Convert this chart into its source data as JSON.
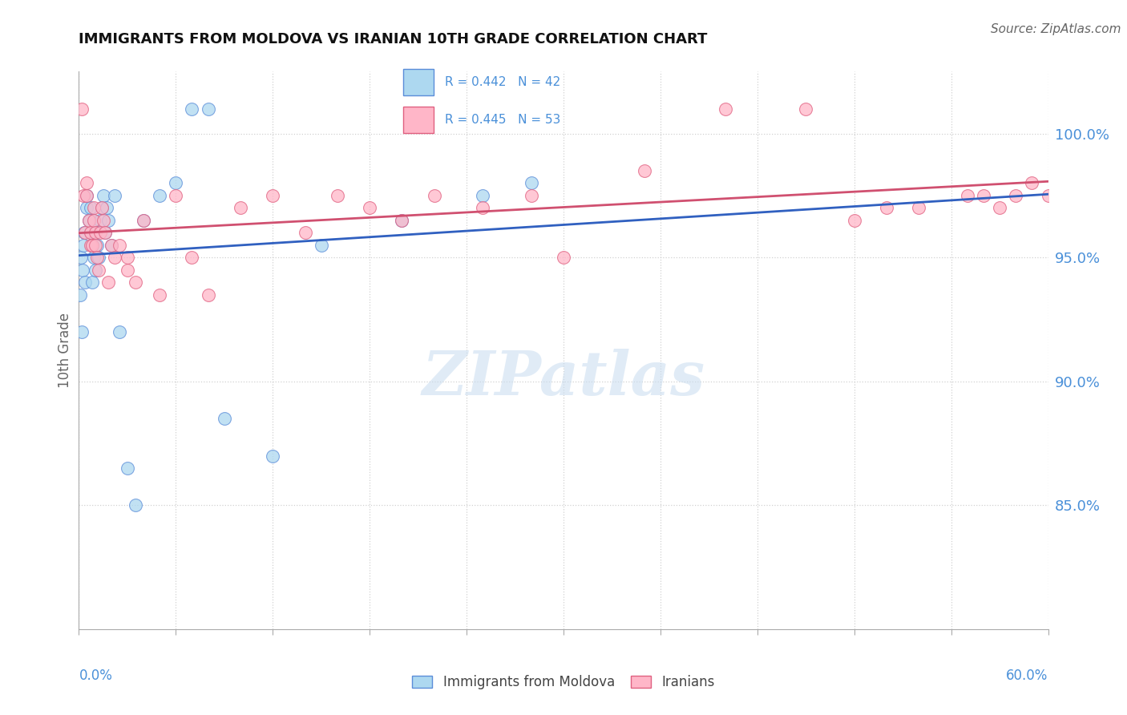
{
  "title": "IMMIGRANTS FROM MOLDOVA VS IRANIAN 10TH GRADE CORRELATION CHART",
  "source": "Source: ZipAtlas.com",
  "ylabel": "10th Grade",
  "xlim": [
    0.0,
    60.0
  ],
  "ylim": [
    80.0,
    102.5
  ],
  "yticks": [
    85.0,
    90.0,
    95.0,
    100.0
  ],
  "ytick_labels": [
    "85.0%",
    "90.0%",
    "95.0%",
    "100.0%"
  ],
  "xtick_positions": [
    0.0,
    6.0,
    12.0,
    18.0,
    24.0,
    30.0,
    36.0,
    42.0,
    48.0,
    54.0,
    60.0
  ],
  "blue_R": 0.442,
  "blue_N": 42,
  "pink_R": 0.445,
  "pink_N": 53,
  "blue_scatter_color": "#ADD8F0",
  "blue_scatter_edge": "#5B8DD9",
  "pink_scatter_color": "#FFB6C8",
  "pink_scatter_edge": "#E06080",
  "blue_line_color": "#3060C0",
  "pink_line_color": "#D05070",
  "legend_label_blue": "Immigrants from Moldova",
  "legend_label_pink": "Iranians",
  "blue_x": [
    0.1,
    0.15,
    0.2,
    0.25,
    0.3,
    0.35,
    0.4,
    0.5,
    0.5,
    0.6,
    0.7,
    0.7,
    0.8,
    0.8,
    0.9,
    0.9,
    1.0,
    1.0,
    1.1,
    1.2,
    1.3,
    1.4,
    1.5,
    1.6,
    1.7,
    1.8,
    2.0,
    2.2,
    2.5,
    3.0,
    3.5,
    4.0,
    5.0,
    6.0,
    7.0,
    8.0,
    9.0,
    12.0,
    15.0,
    20.0,
    25.0,
    28.0
  ],
  "blue_y": [
    93.5,
    95.0,
    92.0,
    94.5,
    95.5,
    96.0,
    94.0,
    97.0,
    97.5,
    96.5,
    96.0,
    97.0,
    95.5,
    94.0,
    96.5,
    95.0,
    94.5,
    96.0,
    95.5,
    95.0,
    96.5,
    97.0,
    97.5,
    96.0,
    97.0,
    96.5,
    95.5,
    97.5,
    92.0,
    86.5,
    85.0,
    96.5,
    97.5,
    98.0,
    101.0,
    101.0,
    88.5,
    87.0,
    95.5,
    96.5,
    97.5,
    98.0
  ],
  "pink_x": [
    0.2,
    0.3,
    0.4,
    0.5,
    0.5,
    0.6,
    0.7,
    0.7,
    0.8,
    0.9,
    0.9,
    1.0,
    1.0,
    1.1,
    1.2,
    1.3,
    1.4,
    1.5,
    1.6,
    1.8,
    2.0,
    2.2,
    2.5,
    3.0,
    3.0,
    3.5,
    4.0,
    5.0,
    6.0,
    7.0,
    8.0,
    10.0,
    12.0,
    14.0,
    16.0,
    18.0,
    20.0,
    22.0,
    25.0,
    28.0,
    30.0,
    35.0,
    40.0,
    45.0,
    48.0,
    50.0,
    52.0,
    55.0,
    56.0,
    57.0,
    58.0,
    59.0,
    60.0
  ],
  "pink_y": [
    101.0,
    97.5,
    96.0,
    97.5,
    98.0,
    96.5,
    95.5,
    96.0,
    95.5,
    97.0,
    96.5,
    95.5,
    96.0,
    95.0,
    94.5,
    96.0,
    97.0,
    96.5,
    96.0,
    94.0,
    95.5,
    95.0,
    95.5,
    95.0,
    94.5,
    94.0,
    96.5,
    93.5,
    97.5,
    95.0,
    93.5,
    97.0,
    97.5,
    96.0,
    97.5,
    97.0,
    96.5,
    97.5,
    97.0,
    97.5,
    95.0,
    98.5,
    101.0,
    101.0,
    96.5,
    97.0,
    97.0,
    97.5,
    97.5,
    97.0,
    97.5,
    98.0,
    97.5
  ],
  "watermark_text": "ZIPatlas",
  "background_color": "#FFFFFF",
  "grid_color": "#CCCCCC",
  "stat_text_color": "#4A90D9",
  "yaxis_tick_color": "#4A90D9",
  "xaxis_label_color": "#4A90D9"
}
